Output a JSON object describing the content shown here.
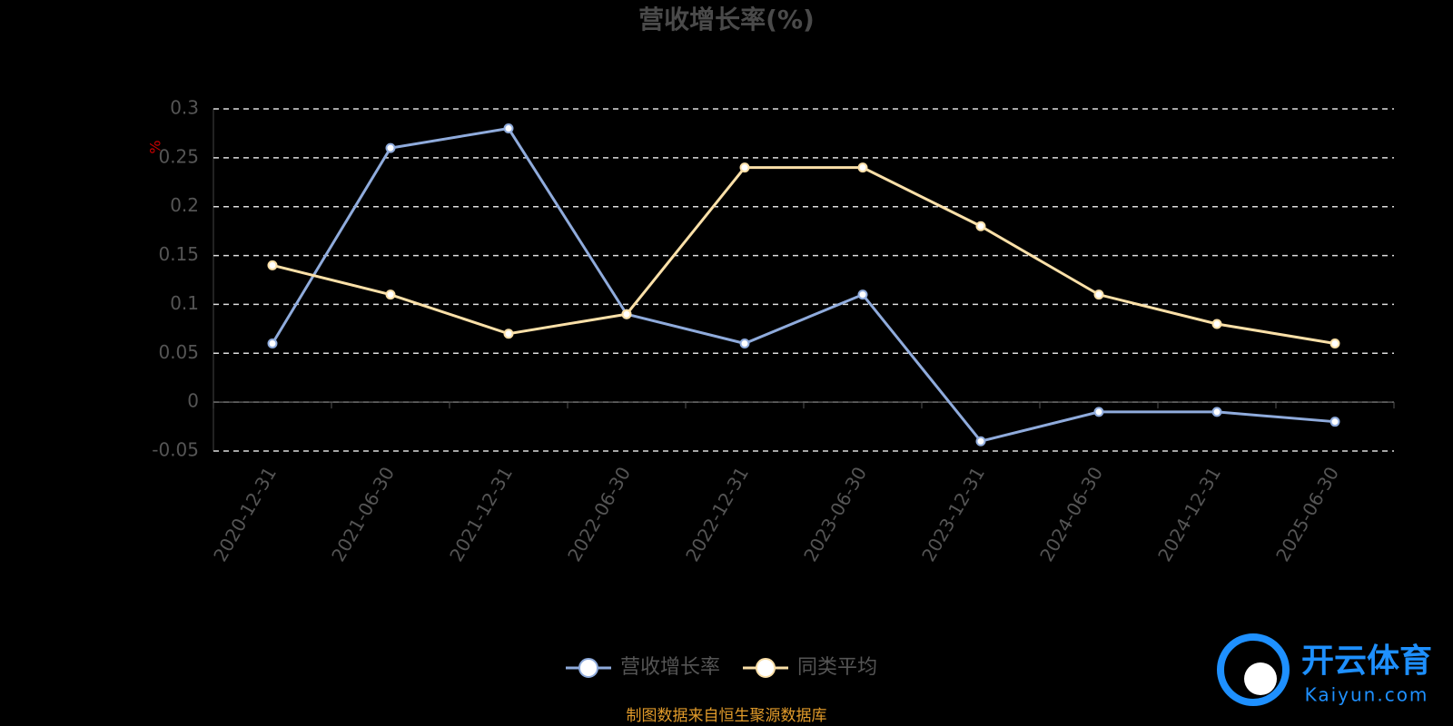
{
  "chart_data": {
    "type": "line",
    "title": "营收增长率(%)",
    "y_label": "%",
    "categories": [
      "2020-12-31",
      "2021-06-30",
      "2021-12-31",
      "2022-06-30",
      "2022-12-31",
      "2023-06-30",
      "2023-12-31",
      "2024-06-30",
      "2024-12-31",
      "2025-06-30"
    ],
    "series": [
      {
        "name": "营收增长率",
        "color": "#8fabdc",
        "values": [
          0.06,
          0.26,
          0.28,
          0.09,
          0.06,
          0.11,
          -0.04,
          -0.01,
          -0.01,
          -0.02
        ]
      },
      {
        "name": "同类平均",
        "color": "#fbe0a8",
        "values": [
          0.14,
          0.11,
          0.07,
          0.09,
          0.24,
          0.24,
          0.18,
          0.11,
          0.08,
          0.06
        ]
      }
    ],
    "ylim": [
      -0.05,
      0.3
    ],
    "yticks": [
      -0.05,
      0,
      0.05,
      0.1,
      0.15,
      0.2,
      0.25,
      0.3
    ],
    "grid": true,
    "legend": "bottom",
    "source": "制图数据来自恒生聚源数据库",
    "watermark": {
      "name": "开云体育",
      "site": "Kaiyun.com"
    }
  }
}
